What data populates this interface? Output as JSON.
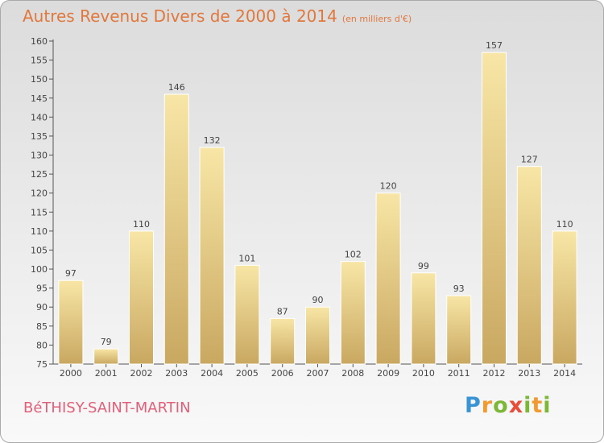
{
  "header": {
    "title": "Autres Revenus Divers de 2000 à 2014",
    "unit": "(en milliers d'€)"
  },
  "footer": {
    "commune": "BéTHISY-SAINT-MARTIN",
    "logo": {
      "letters": [
        "P",
        "r",
        "o",
        "x",
        "i",
        "t",
        "i"
      ]
    }
  },
  "colors": {
    "bar_light": "#f8e6a6",
    "bar_dark": "#c9a861",
    "title": "#e0783d",
    "commune": "#e0607a"
  },
  "chart_data": {
    "type": "bar",
    "title": "Autres Revenus Divers de 2000 à 2014",
    "xlabel": "",
    "ylabel": "",
    "categories": [
      "2000",
      "2001",
      "2002",
      "2003",
      "2004",
      "2005",
      "2006",
      "2007",
      "2008",
      "2009",
      "2010",
      "2011",
      "2012",
      "2013",
      "2014"
    ],
    "values": [
      97,
      79,
      110,
      146,
      132,
      101,
      87,
      90,
      102,
      120,
      99,
      93,
      157,
      127,
      110
    ],
    "ylim": [
      75,
      160
    ],
    "yticks": [
      75,
      80,
      85,
      90,
      95,
      100,
      105,
      110,
      115,
      120,
      125,
      130,
      135,
      140,
      145,
      150,
      155,
      160
    ],
    "grid": false,
    "legend": "none"
  }
}
